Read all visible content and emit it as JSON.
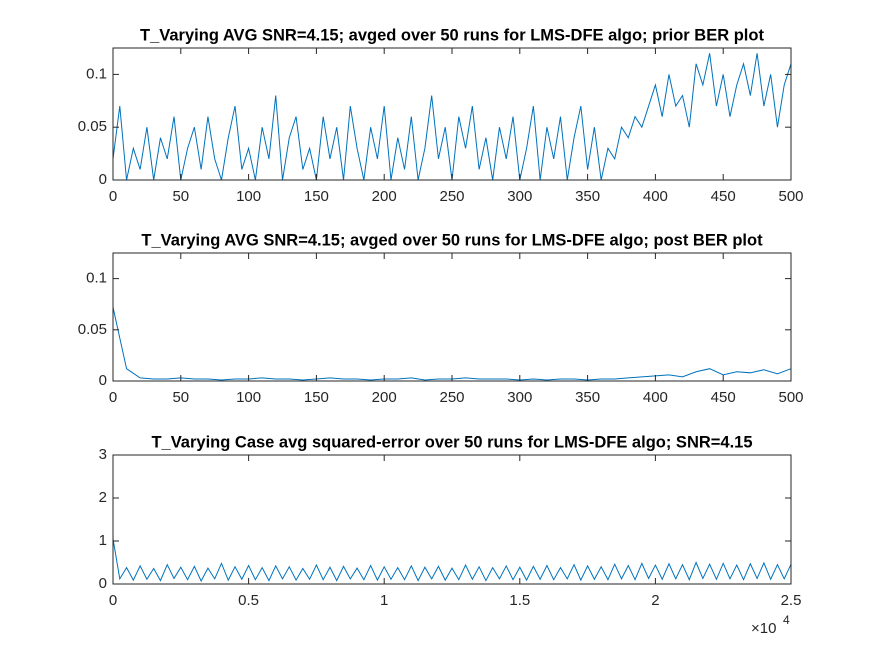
{
  "chart_data": [
    {
      "type": "line",
      "title": "T_Varying AVG SNR=4.15; avged over 50 runs for LMS-DFE algo; prior BER plot",
      "color": "#0072bd",
      "x": [
        0,
        5,
        10,
        15,
        20,
        25,
        30,
        35,
        40,
        45,
        50,
        55,
        60,
        65,
        70,
        75,
        80,
        85,
        90,
        95,
        100,
        105,
        110,
        115,
        120,
        125,
        130,
        135,
        140,
        145,
        150,
        155,
        160,
        165,
        170,
        175,
        180,
        185,
        190,
        195,
        200,
        205,
        210,
        215,
        220,
        225,
        230,
        235,
        240,
        245,
        250,
        255,
        260,
        265,
        270,
        275,
        280,
        285,
        290,
        295,
        300,
        305,
        310,
        315,
        320,
        325,
        330,
        335,
        340,
        345,
        350,
        355,
        360,
        365,
        370,
        375,
        380,
        385,
        390,
        395,
        400,
        405,
        410,
        415,
        420,
        425,
        430,
        435,
        440,
        445,
        450,
        455,
        460,
        465,
        470,
        475,
        480,
        485,
        490,
        495,
        500
      ],
      "values": [
        0.02,
        0.07,
        0.0,
        0.03,
        0.01,
        0.05,
        0.0,
        0.04,
        0.02,
        0.06,
        0.0,
        0.03,
        0.05,
        0.01,
        0.06,
        0.02,
        0.0,
        0.04,
        0.07,
        0.01,
        0.03,
        0.0,
        0.05,
        0.02,
        0.08,
        0.0,
        0.04,
        0.06,
        0.01,
        0.03,
        0.0,
        0.06,
        0.02,
        0.05,
        0.0,
        0.07,
        0.03,
        0.0,
        0.05,
        0.02,
        0.07,
        0.0,
        0.04,
        0.01,
        0.06,
        0.0,
        0.03,
        0.08,
        0.02,
        0.05,
        0.0,
        0.06,
        0.03,
        0.07,
        0.01,
        0.04,
        0.0,
        0.05,
        0.02,
        0.06,
        0.0,
        0.03,
        0.07,
        0.0,
        0.05,
        0.02,
        0.06,
        0.0,
        0.04,
        0.07,
        0.01,
        0.05,
        0.0,
        0.03,
        0.02,
        0.05,
        0.04,
        0.06,
        0.05,
        0.07,
        0.09,
        0.06,
        0.1,
        0.07,
        0.08,
        0.05,
        0.11,
        0.09,
        0.12,
        0.07,
        0.1,
        0.06,
        0.09,
        0.11,
        0.08,
        0.12,
        0.07,
        0.1,
        0.05,
        0.09,
        0.11
      ],
      "xlim": [
        0,
        500
      ],
      "xticks": [
        0,
        50,
        100,
        150,
        200,
        250,
        300,
        350,
        400,
        450,
        500
      ],
      "ylim": [
        0,
        0.125
      ],
      "yticks": [
        0,
        0.05,
        0.1
      ]
    },
    {
      "type": "line",
      "title": "T_Varying AVG SNR=4.15; avged over 50 runs for LMS-DFE algo; post BER plot",
      "color": "#0072bd",
      "x": [
        0,
        10,
        20,
        30,
        40,
        50,
        60,
        70,
        80,
        90,
        100,
        110,
        120,
        130,
        140,
        150,
        160,
        170,
        180,
        190,
        200,
        210,
        220,
        230,
        240,
        250,
        260,
        270,
        280,
        290,
        300,
        310,
        320,
        330,
        340,
        350,
        360,
        370,
        380,
        390,
        400,
        410,
        420,
        430,
        440,
        450,
        460,
        470,
        480,
        490,
        500
      ],
      "values": [
        0.072,
        0.012,
        0.003,
        0.002,
        0.002,
        0.003,
        0.002,
        0.002,
        0.001,
        0.002,
        0.002,
        0.003,
        0.002,
        0.002,
        0.001,
        0.002,
        0.003,
        0.002,
        0.002,
        0.001,
        0.002,
        0.002,
        0.003,
        0.001,
        0.002,
        0.002,
        0.003,
        0.002,
        0.002,
        0.002,
        0.001,
        0.002,
        0.001,
        0.002,
        0.002,
        0.001,
        0.002,
        0.002,
        0.003,
        0.004,
        0.005,
        0.006,
        0.004,
        0.009,
        0.012,
        0.006,
        0.009,
        0.008,
        0.011,
        0.007,
        0.012
      ],
      "xlim": [
        0,
        500
      ],
      "xticks": [
        0,
        50,
        100,
        150,
        200,
        250,
        300,
        350,
        400,
        450,
        500
      ],
      "ylim": [
        0,
        0.125
      ],
      "yticks": [
        0,
        0.05,
        0.1
      ]
    },
    {
      "type": "line",
      "title": "T_Varying Case avg squared-error over 50 runs for LMS-DFE algo; SNR=4.15",
      "color": "#0072bd",
      "x": [
        0,
        250,
        500,
        750,
        1000,
        1250,
        1500,
        1750,
        2000,
        2250,
        2500,
        2750,
        3000,
        3250,
        3500,
        3750,
        4000,
        4250,
        4500,
        4750,
        5000,
        5250,
        5500,
        5750,
        6000,
        6250,
        6500,
        6750,
        7000,
        7250,
        7500,
        7750,
        8000,
        8250,
        8500,
        8750,
        9000,
        9250,
        9500,
        9750,
        10000,
        10250,
        10500,
        10750,
        11000,
        11250,
        11500,
        11750,
        12000,
        12250,
        12500,
        12750,
        13000,
        13250,
        13500,
        13750,
        14000,
        14250,
        14500,
        14750,
        15000,
        15250,
        15500,
        15750,
        16000,
        16250,
        16500,
        16750,
        17000,
        17250,
        17500,
        17750,
        18000,
        18250,
        18500,
        18750,
        19000,
        19250,
        19500,
        19750,
        20000,
        20250,
        20500,
        20750,
        21000,
        21250,
        21500,
        21750,
        22000,
        22250,
        22500,
        22750,
        23000,
        23250,
        23500,
        23750,
        24000,
        24250,
        24500,
        24750,
        25000
      ],
      "values": [
        1.05,
        0.12,
        0.38,
        0.09,
        0.42,
        0.11,
        0.36,
        0.08,
        0.45,
        0.13,
        0.39,
        0.1,
        0.41,
        0.07,
        0.37,
        0.12,
        0.48,
        0.09,
        0.4,
        0.11,
        0.43,
        0.1,
        0.38,
        0.08,
        0.42,
        0.12,
        0.4,
        0.09,
        0.36,
        0.11,
        0.44,
        0.1,
        0.39,
        0.08,
        0.41,
        0.12,
        0.37,
        0.1,
        0.43,
        0.09,
        0.4,
        0.11,
        0.38,
        0.1,
        0.42,
        0.08,
        0.39,
        0.12,
        0.41,
        0.09,
        0.37,
        0.1,
        0.44,
        0.11,
        0.4,
        0.08,
        0.38,
        0.12,
        0.42,
        0.1,
        0.39,
        0.09,
        0.41,
        0.11,
        0.43,
        0.1,
        0.38,
        0.12,
        0.45,
        0.09,
        0.42,
        0.11,
        0.4,
        0.1,
        0.46,
        0.12,
        0.43,
        0.1,
        0.48,
        0.13,
        0.44,
        0.11,
        0.47,
        0.12,
        0.45,
        0.1,
        0.5,
        0.13,
        0.46,
        0.11,
        0.48,
        0.12,
        0.44,
        0.1,
        0.47,
        0.13,
        0.49,
        0.11,
        0.45,
        0.12,
        0.46
      ],
      "xlim": [
        0,
        25000
      ],
      "xticks": [
        0,
        {
          "value": 5000,
          "label": "0.5"
        },
        {
          "value": 10000,
          "label": "1"
        },
        {
          "value": 15000,
          "label": "1.5"
        },
        {
          "value": 20000,
          "label": "2"
        },
        {
          "value": 25000,
          "label": "2.5"
        }
      ],
      "x_exponent_base": "×10",
      "x_exponent": "4",
      "ylim": [
        0,
        3
      ],
      "yticks": [
        0,
        1,
        2,
        3
      ]
    }
  ]
}
